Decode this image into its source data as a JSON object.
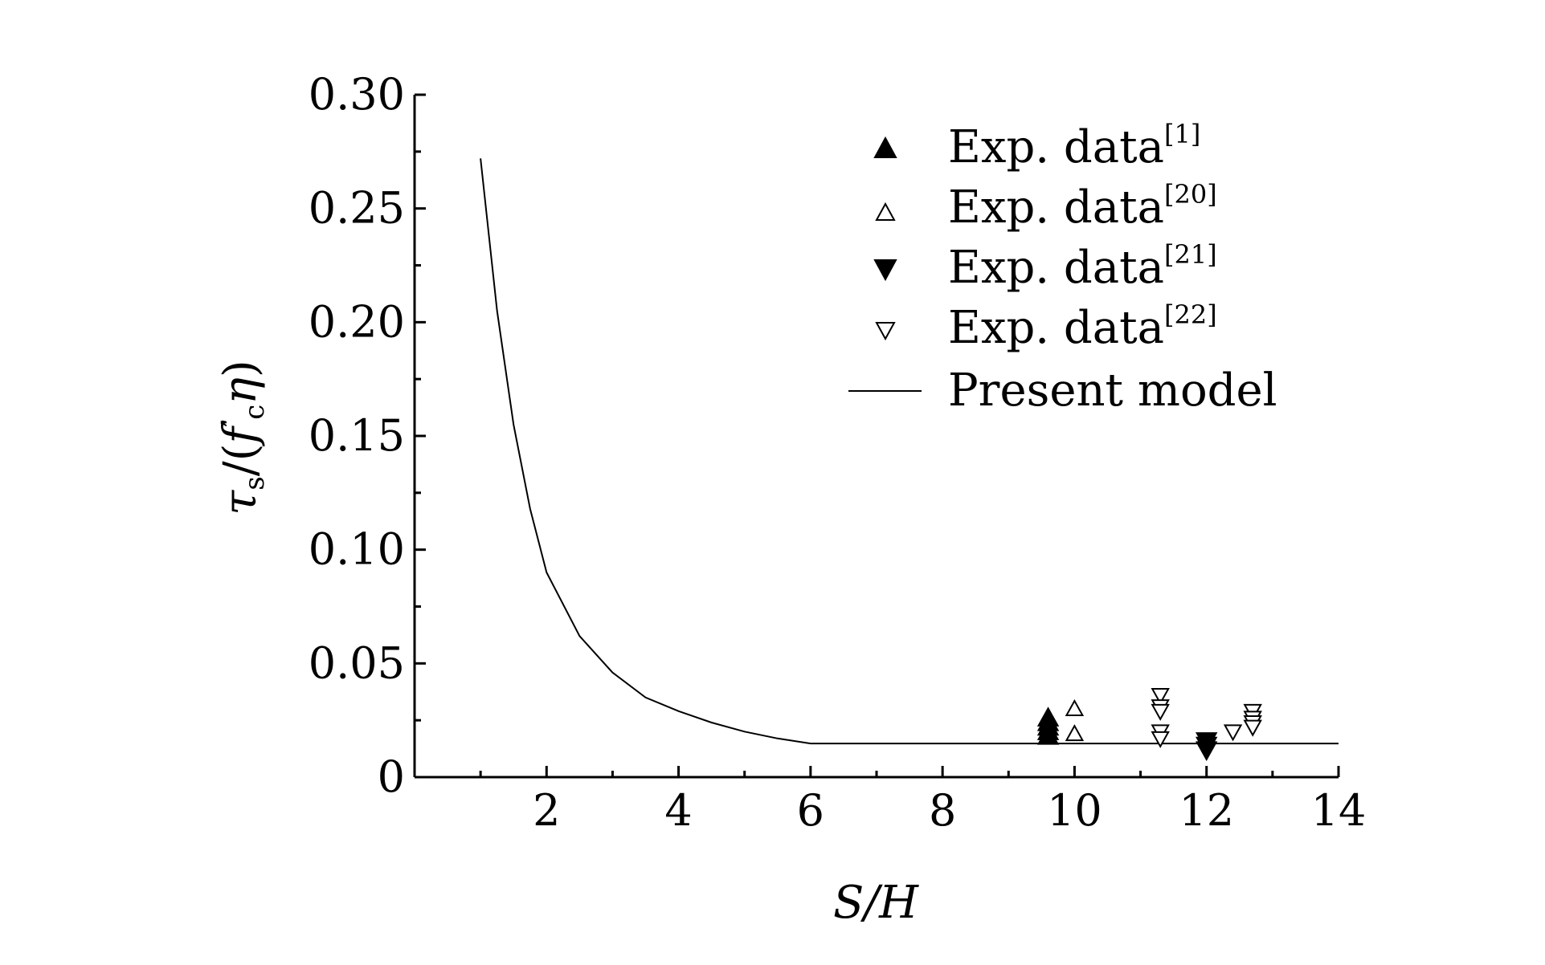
{
  "chart_data": {
    "type": "scatter",
    "xlabel": "S/H",
    "ylabel": {
      "main": "τ",
      "sub1": "s",
      "mid": "/(",
      "f": "f",
      "prime": "′",
      "sub2": "c",
      "eta": "η",
      "close": ")"
    },
    "xlim": [
      0,
      14
    ],
    "ylim": [
      0,
      0.3
    ],
    "x_ticks": [
      2,
      4,
      6,
      8,
      10,
      12,
      14
    ],
    "x_tick_labels": [
      "2",
      "4",
      "6",
      "8",
      "10",
      "12",
      "14"
    ],
    "y_ticks": [
      0,
      0.05,
      0.1,
      0.15,
      0.2,
      0.25,
      0.3
    ],
    "y_tick_labels": [
      "0",
      "0.05",
      "0.10",
      "0.15",
      "0.20",
      "0.25",
      "0.30"
    ],
    "legend_position": "top-right",
    "series": [
      {
        "name": "Exp. data",
        "ref": "[1]",
        "marker": "triangle-up-filled",
        "points": [
          [
            9.6,
            0.026
          ],
          [
            9.6,
            0.024
          ],
          [
            9.6,
            0.022
          ],
          [
            9.6,
            0.02
          ],
          [
            9.6,
            0.018
          ]
        ]
      },
      {
        "name": "Exp. data",
        "ref": "[20]",
        "marker": "triangle-up-open",
        "points": [
          [
            10.0,
            0.03
          ],
          [
            10.0,
            0.019
          ]
        ]
      },
      {
        "name": "Exp. data",
        "ref": "[21]",
        "marker": "triangle-down-filled",
        "points": [
          [
            12.0,
            0.016
          ],
          [
            12.0,
            0.014
          ],
          [
            12.0,
            0.012
          ]
        ]
      },
      {
        "name": "Exp. data",
        "ref": "[22]",
        "marker": "triangle-down-open",
        "points": [
          [
            11.3,
            0.036
          ],
          [
            11.3,
            0.031
          ],
          [
            11.3,
            0.029
          ],
          [
            11.3,
            0.02
          ],
          [
            11.3,
            0.017
          ],
          [
            12.4,
            0.02
          ],
          [
            12.7,
            0.029
          ],
          [
            12.7,
            0.026
          ],
          [
            12.7,
            0.024
          ],
          [
            12.7,
            0.022
          ]
        ]
      },
      {
        "name": "Present model",
        "marker": "line",
        "points": [
          [
            1.0,
            0.272
          ],
          [
            1.1,
            0.245
          ],
          [
            1.25,
            0.205
          ],
          [
            1.5,
            0.155
          ],
          [
            1.75,
            0.118
          ],
          [
            2.0,
            0.09
          ],
          [
            2.5,
            0.062
          ],
          [
            3.0,
            0.046
          ],
          [
            3.5,
            0.035
          ],
          [
            4.0,
            0.029
          ],
          [
            4.5,
            0.024
          ],
          [
            5.0,
            0.02
          ],
          [
            5.5,
            0.017
          ],
          [
            6.0,
            0.0148
          ],
          [
            14.0,
            0.0148
          ]
        ]
      }
    ]
  }
}
